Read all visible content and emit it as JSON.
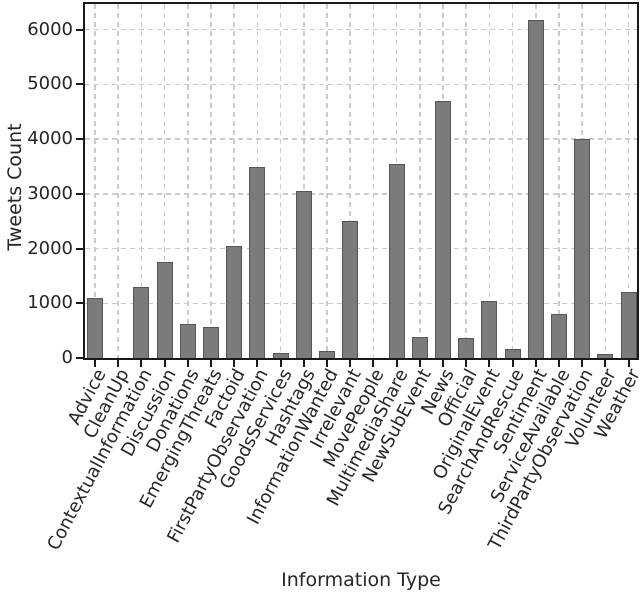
{
  "chart_data": {
    "type": "bar",
    "title": "",
    "xlabel": "Information Type",
    "ylabel": "Tweets Count",
    "categories": [
      "Advice",
      "CleanUp",
      "ContextualInformation",
      "Discussion",
      "Donations",
      "EmergingThreats",
      "Factoid",
      "FirstPartyObservation",
      "GoodsServices",
      "Hashtags",
      "InformationWanted",
      "Irrelevant",
      "MovePeople",
      "MultimediaShare",
      "NewSubEvent",
      "News",
      "Official",
      "OriginalEvent",
      "SearchAndRescue",
      "Sentiment",
      "ServiceAvailable",
      "ThirdPartyObservation",
      "Volunteer",
      "Weather"
    ],
    "values": [
      1100,
      0,
      1300,
      1750,
      620,
      560,
      2050,
      3500,
      90,
      3050,
      130,
      2500,
      0,
      3550,
      380,
      4700,
      360,
      1050,
      160,
      6170,
      800,
      4000,
      70,
      1200
    ],
    "yticks": [
      0,
      1000,
      2000,
      3000,
      4000,
      5000,
      6000
    ],
    "ylim": [
      0,
      6470
    ],
    "grid": "dashed, both axes, behind bars",
    "legend": "none",
    "bar_color": "#7b7b7b",
    "bar_edge_color": "#565656",
    "grid_color": "#cbcbcb",
    "axis_color": "#1a1a1a",
    "text_color": "#262626"
  }
}
